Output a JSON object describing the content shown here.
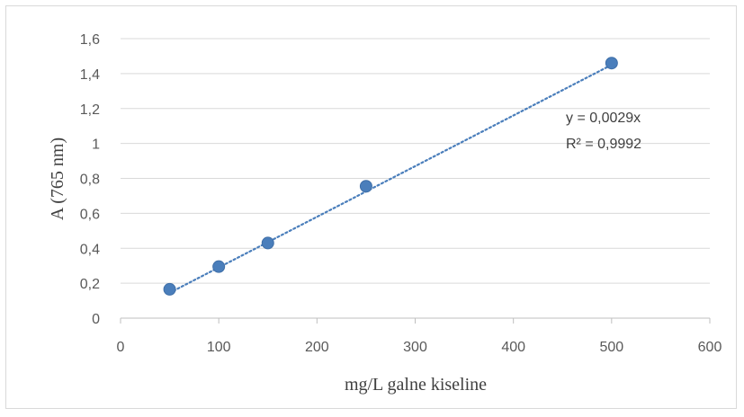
{
  "chart_data": {
    "type": "scatter",
    "xlabel": "mg/L galne kiseline",
    "ylabel": "A (765 nm)",
    "xlim": [
      0,
      600
    ],
    "ylim": [
      0,
      1.6
    ],
    "xticks": [
      0,
      100,
      200,
      300,
      400,
      500,
      600
    ],
    "yticks": [
      0,
      0.2,
      0.4,
      0.6,
      0.8,
      1,
      1.2,
      1.4,
      1.6
    ],
    "xtick_labels": [
      "0",
      "100",
      "200",
      "300",
      "400",
      "500",
      "600"
    ],
    "ytick_labels": [
      "0",
      "0,2",
      "0,4",
      "0,6",
      "0,8",
      "1",
      "1,2",
      "1,4",
      "1,6"
    ],
    "grid": {
      "horizontal": true,
      "vertical": false
    },
    "legend": "none",
    "series": [
      {
        "x": [
          50,
          100,
          150,
          250,
          500
        ],
        "y": [
          0.165,
          0.295,
          0.43,
          0.755,
          1.46
        ],
        "color": "#4a7ebb"
      }
    ],
    "trendline": {
      "type": "linear",
      "slope": 0.0029,
      "intercept": 0,
      "x_range": [
        50,
        500
      ],
      "style": "dotted",
      "color": "#4a7ebb",
      "equation_label": "y = 0,0029x",
      "r2_label": "R² = 0,9992"
    }
  }
}
